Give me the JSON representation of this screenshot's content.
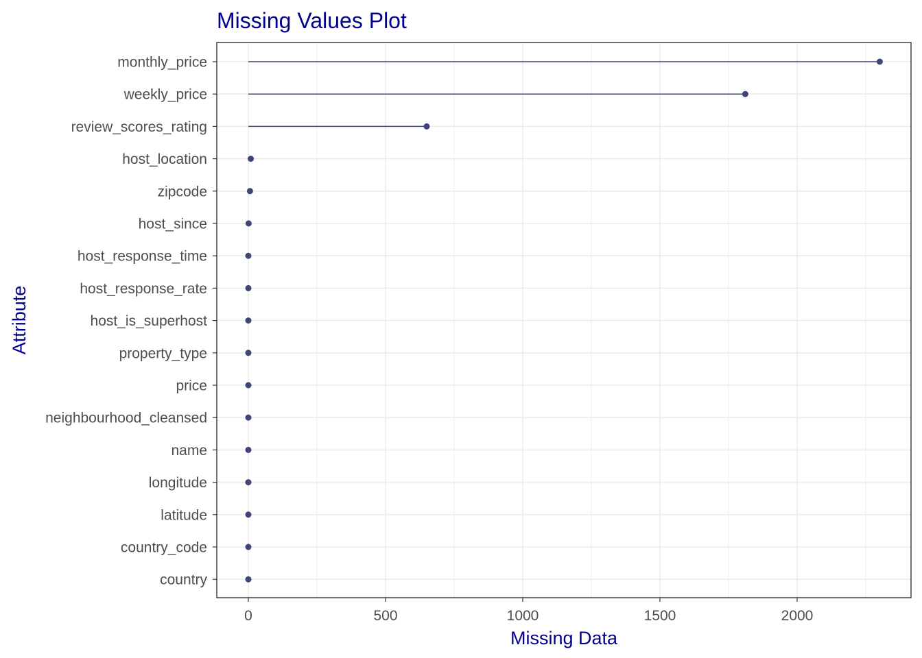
{
  "chart_data": {
    "type": "lollipop",
    "title": "Missing Values Plot",
    "xlabel": "Missing Data",
    "ylabel": "Attribute",
    "xlim": [
      -115,
      2415
    ],
    "xticks": [
      0,
      500,
      1000,
      1500,
      2000
    ],
    "xtick_labels": [
      "0",
      "500",
      "1000",
      "1500",
      "2000"
    ],
    "grid": true,
    "categories": [
      "monthly_price",
      "weekly_price",
      "review_scores_rating",
      "host_location",
      "zipcode",
      "host_since",
      "host_response_time",
      "host_response_rate",
      "host_is_superhost",
      "property_type",
      "price",
      "neighbourhood_cleansed",
      "name",
      "longitude",
      "latitude",
      "country_code",
      "country"
    ],
    "values": [
      2301,
      1811,
      650,
      9,
      6,
      1,
      0,
      0,
      0,
      0,
      0,
      0,
      0,
      0,
      0,
      0,
      0
    ],
    "colors": {
      "title": "#00008B",
      "axis_title": "#00008B",
      "marker": "#3F4577",
      "grid": "#EBEBEB",
      "panel_border": "#333333",
      "tick_label": "#4D4D4D"
    }
  }
}
